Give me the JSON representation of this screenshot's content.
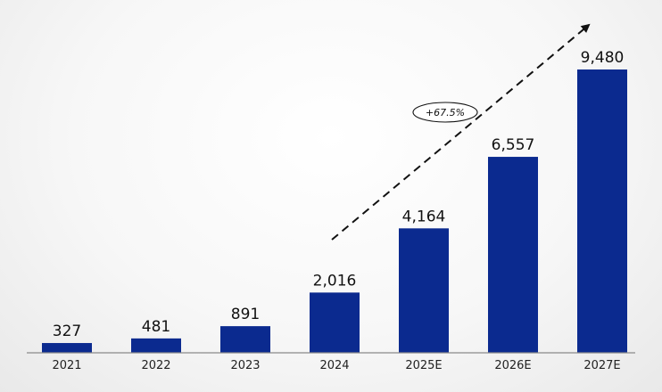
{
  "chart_data": {
    "type": "bar",
    "categories": [
      "2021",
      "2022",
      "2023",
      "2024",
      "2025E",
      "2026E",
      "2027E"
    ],
    "values": [
      327,
      481,
      891,
      2016,
      4164,
      6557,
      9480
    ],
    "value_labels": [
      "327",
      "481",
      "891",
      "2,016",
      "4,164",
      "6,557",
      "9,480"
    ],
    "title": "",
    "xlabel": "",
    "ylabel": "",
    "ylim": [
      0,
      9480
    ],
    "grid": false,
    "legend": "none",
    "annotation": {
      "text": "+67.5%",
      "kind": "trend-arrow"
    }
  },
  "colors": {
    "bar": "#0b2a8f",
    "axis": "#8a8a8a",
    "text": "#111111"
  }
}
